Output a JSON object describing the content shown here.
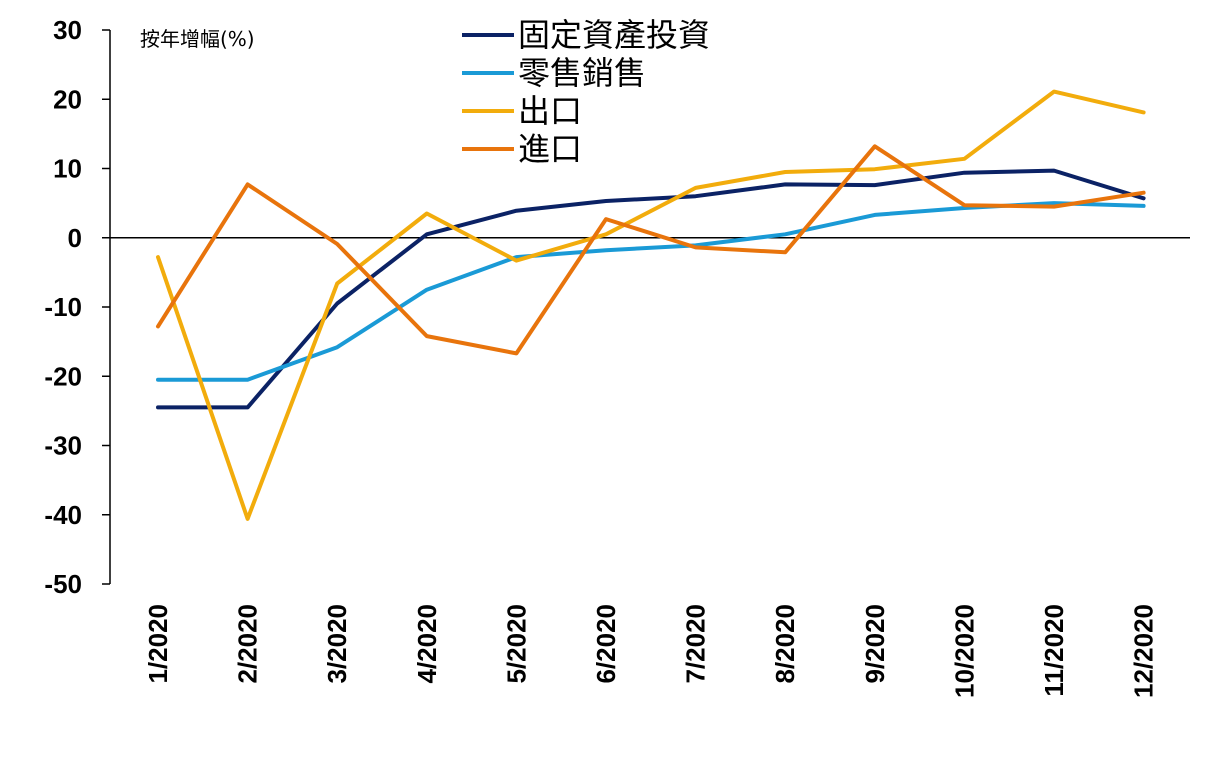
{
  "chart_data": {
    "type": "line",
    "ylabel": "按年增幅(%)",
    "ylim": [
      -50,
      30
    ],
    "yticks": [
      30,
      20,
      10,
      0,
      -10,
      -20,
      -30,
      -40,
      -50
    ],
    "categories": [
      "1/2020",
      "2/2020",
      "3/2020",
      "4/2020",
      "5/2020",
      "6/2020",
      "7/2020",
      "8/2020",
      "9/2020",
      "10/2020",
      "11/2020",
      "12/2020"
    ],
    "legend_position": "top-center",
    "grid": false,
    "series": [
      {
        "name": "固定資產投資",
        "color": "#0b2265",
        "values": [
          -24.5,
          -24.5,
          -9.5,
          0.5,
          3.9,
          5.3,
          6.0,
          7.7,
          7.6,
          9.4,
          9.7,
          5.7
        ]
      },
      {
        "name": "零售銷售",
        "color": "#1a9ad6",
        "values": [
          -20.5,
          -20.5,
          -15.8,
          -7.5,
          -2.8,
          -1.8,
          -1.1,
          0.5,
          3.3,
          4.3,
          5.0,
          4.6
        ]
      },
      {
        "name": "出口",
        "color": "#f2ac0c",
        "values": [
          -2.8,
          -40.6,
          -6.6,
          3.5,
          -3.3,
          0.5,
          7.2,
          9.5,
          9.9,
          11.4,
          21.1,
          18.1
        ]
      },
      {
        "name": "進口",
        "color": "#e8740c",
        "values": [
          -12.8,
          7.7,
          -0.9,
          -14.2,
          -16.7,
          2.7,
          -1.4,
          -2.1,
          13.2,
          4.7,
          4.5,
          6.5
        ]
      }
    ]
  }
}
